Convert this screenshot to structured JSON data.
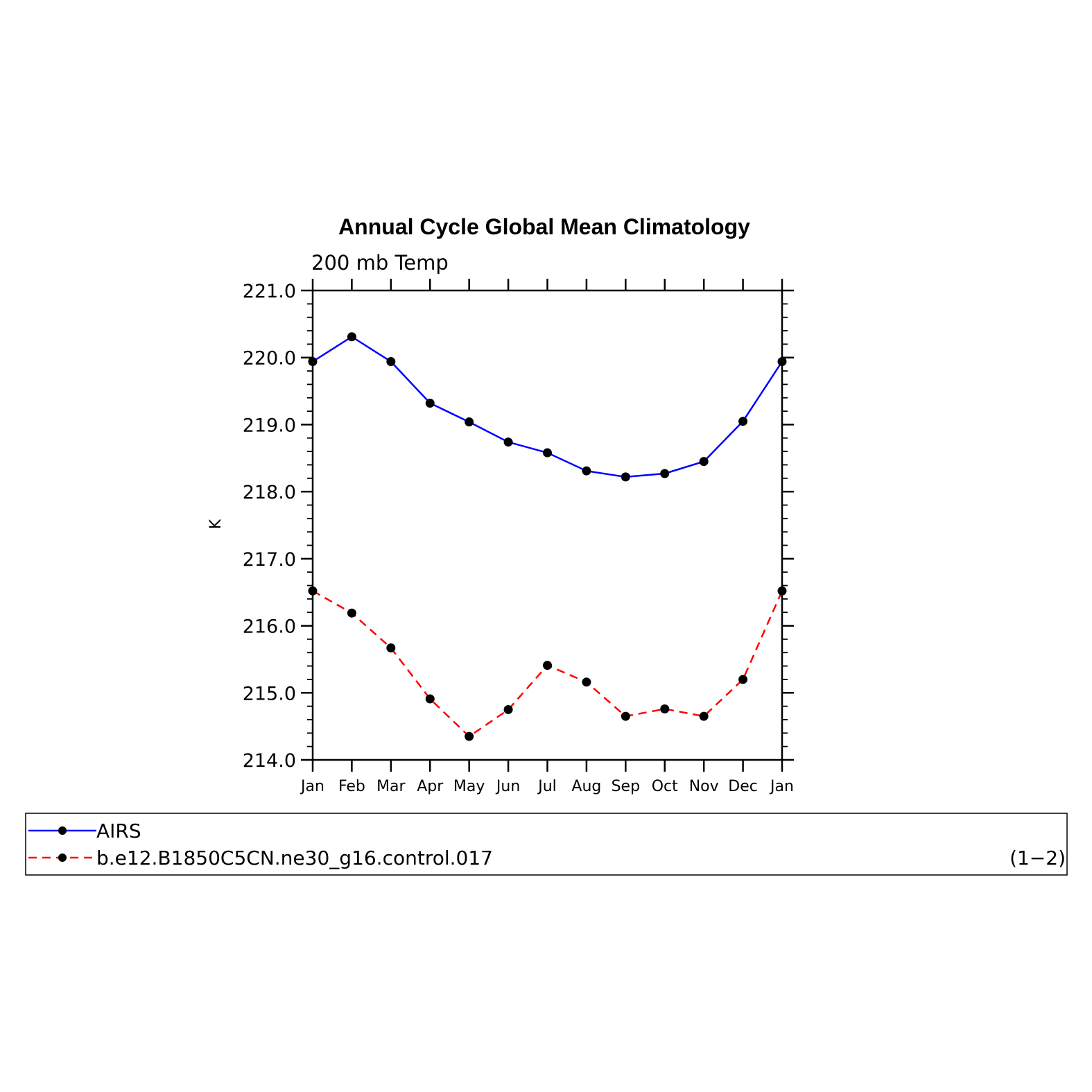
{
  "chart_data": {
    "type": "line",
    "title": "Annual Cycle Global Mean Climatology",
    "subtitle": "200 mb Temp",
    "xlabel": "",
    "ylabel": "K",
    "categories": [
      "Jan",
      "Feb",
      "Mar",
      "Apr",
      "May",
      "Jun",
      "Jul",
      "Aug",
      "Sep",
      "Oct",
      "Nov",
      "Dec",
      "Jan"
    ],
    "ylim": [
      214.0,
      221.0
    ],
    "yticks": [
      "214.0",
      "215.0",
      "216.0",
      "217.0",
      "218.0",
      "219.0",
      "220.0",
      "221.0"
    ],
    "series": [
      {
        "name": "AIRS",
        "color": "#0000ff",
        "dash": "solid",
        "values": [
          219.94,
          220.31,
          219.94,
          219.32,
          219.04,
          218.74,
          218.58,
          218.31,
          218.22,
          218.27,
          218.45,
          219.05,
          219.94
        ]
      },
      {
        "name": "b.e12.B1850C5CN.ne30_g16.control.017",
        "color": "#ff0000",
        "dash": "dashed",
        "values": [
          216.52,
          216.19,
          215.67,
          214.91,
          214.35,
          214.75,
          215.41,
          215.16,
          214.65,
          214.76,
          214.65,
          215.2,
          216.52
        ]
      }
    ],
    "grid": false,
    "legend_position": "bottom",
    "legend_note": "(1−2)"
  }
}
